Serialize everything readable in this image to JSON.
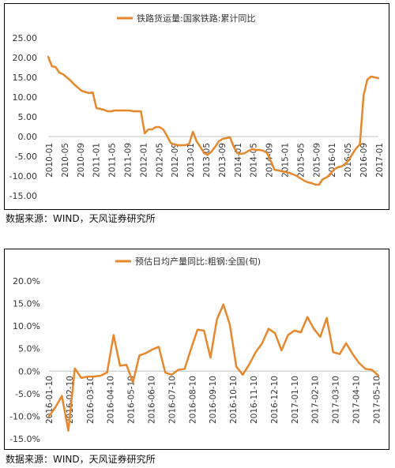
{
  "charts": [
    {
      "chart_data": {
        "type": "line",
        "series": [
          {
            "name": "铁路货运量:国家铁路:累计同比",
            "color": "#E8872B",
            "values": [
              20.2,
              17.8,
              17.6,
              16.2,
              15.8,
              15.0,
              14.2,
              13.2,
              12.4,
              11.6,
              11.3,
              11.0,
              11.2,
              7.2,
              7.0,
              6.8,
              6.4,
              6.4,
              6.6,
              6.6,
              6.6,
              6.6,
              6.6,
              6.4,
              6.4,
              6.4,
              0.8,
              1.8,
              1.8,
              2.4,
              2.4,
              1.8,
              0.2,
              -1.6,
              -2.0,
              -2.2,
              -2.2,
              -2.2,
              -1.8,
              1.2,
              -1.2,
              -2.6,
              -4.2,
              -4.6,
              -3.8,
              -2.6,
              -1.2,
              -0.6,
              -0.4,
              -0.2,
              -2.6,
              -4.2,
              -4.4,
              -4.2,
              -3.6,
              -3.2,
              -3.4,
              -3.4,
              -3.6,
              -4.2,
              -6.2,
              -8.4,
              -8.6,
              -8.8,
              -9.0,
              -9.2,
              -9.6,
              -10.0,
              -10.6,
              -11.2,
              -11.6,
              -11.8,
              -12.2,
              -12.2,
              -10.8,
              -10.4,
              -9.6,
              -8.4,
              -7.8,
              -7.6,
              -7.0,
              -6.0,
              -4.4,
              -3.0,
              -2.0,
              10.4,
              14.4,
              15.2,
              15.0,
              14.8
            ]
          }
        ],
        "x_tick_labels": [
          "2010-01",
          "2010-05",
          "2010-09",
          "2011-01",
          "2011-05",
          "2011-09",
          "2012-01",
          "2012-05",
          "2012-09",
          "2013-01",
          "2013-05",
          "2013-09",
          "2014-01",
          "2014-05",
          "2014-09",
          "2015-01",
          "2015-05",
          "2015-09",
          "2016-01",
          "2016-05",
          "2016-09",
          "2017-01"
        ],
        "y_tick_labels": [
          "25.00",
          "20.00",
          "15.00",
          "10.00",
          "5.00",
          "0.00",
          "-5.00",
          "-10.00",
          "-15.00"
        ],
        "ylim": [
          -15,
          25
        ],
        "legend_position": "top"
      },
      "source": "数据来源：WIND，天风证券研究所"
    },
    {
      "chart_data": {
        "type": "line",
        "series": [
          {
            "name": "预估日均产量同比:粗钢:全国(旬)",
            "color": "#E8872B",
            "values": [
              -10.0,
              -8.0,
              -5.5,
              -13.2,
              0.6,
              -1.5,
              -1.2,
              -1.2,
              -1.0,
              -0.3,
              8.0,
              1.2,
              1.4,
              -2.5,
              3.5,
              4.0,
              4.8,
              5.4,
              -0.3,
              -0.8,
              0.3,
              0.5,
              5.0,
              9.2,
              9.0,
              3.0,
              11.5,
              14.8,
              10.3,
              1.0,
              -0.8,
              1.5,
              4.2,
              6.2,
              9.4,
              8.4,
              4.6,
              8.0,
              9.0,
              8.6,
              12.0,
              9.4,
              7.6,
              11.8,
              4.2,
              3.8,
              6.2,
              3.8,
              1.8,
              0.5,
              0.3,
              -1.0
            ]
          }
        ],
        "x_tick_labels": [
          "2016-01-10",
          "2016-02-10",
          "2016-03-10",
          "2016-04-10",
          "2016-05-10",
          "2016-06-10",
          "2016-07-10",
          "2016-08-10",
          "2016-09-10",
          "2016-10-10",
          "2016-11-10",
          "2016-12-10",
          "2017-01-10",
          "2017-02-10",
          "2017-03-10",
          "2017-04-10",
          "2017-05-10"
        ],
        "y_tick_labels": [
          "20.0%",
          "15.0%",
          "10.0%",
          "5.0%",
          "0.0%",
          "-5.0%",
          "-10.0%",
          "-15.0%"
        ],
        "ylim": [
          -15,
          20
        ],
        "legend_position": "top"
      },
      "source": "数据来源：WIND，天风证券研究所"
    }
  ]
}
